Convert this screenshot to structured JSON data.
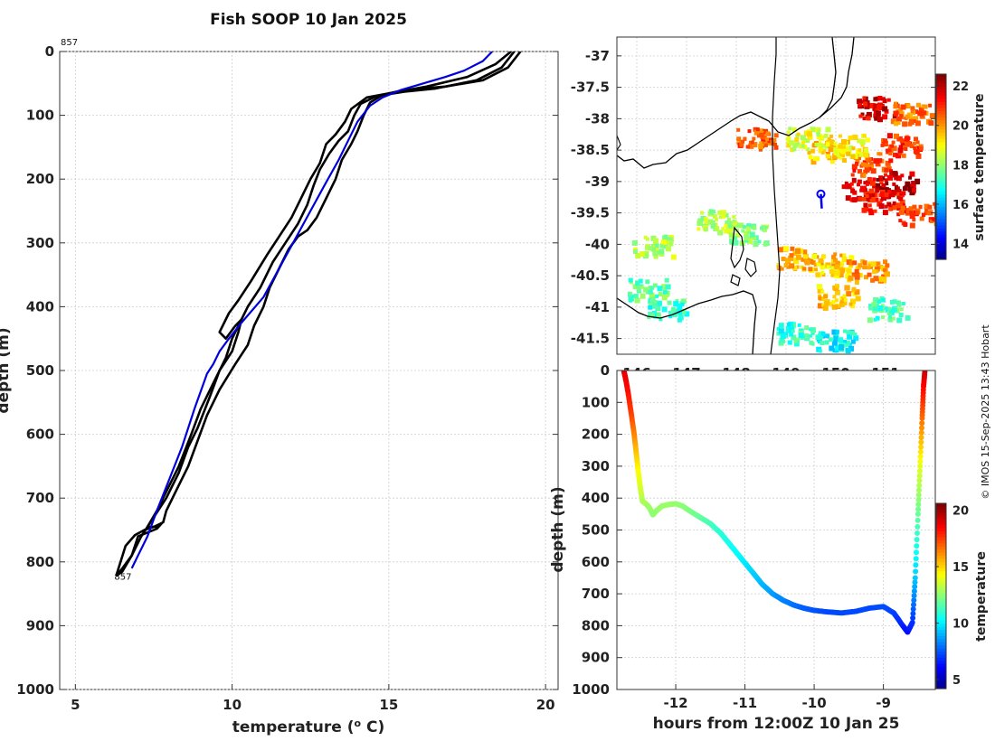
{
  "title": "Fish SOOP 10 Jan 2025",
  "credit": "© IMOS 15-Sep-2025 13:43 Hobart",
  "colors": {
    "black": "#000000",
    "blue": "#0000dd",
    "grid": "#c8c8c8"
  },
  "chart_data": [
    {
      "type": "line",
      "name": "profile",
      "xlabel": "temperature (",
      "xlabel_sup": "o",
      "xlabel_end": " C)",
      "ylabel": "depth (m)",
      "xlim": [
        4.5,
        20.4
      ],
      "ylim": [
        1000,
        0
      ],
      "xticks": [
        5,
        10,
        15,
        20
      ],
      "yticks": [
        0,
        100,
        200,
        300,
        400,
        500,
        600,
        700,
        800,
        900,
        1000
      ],
      "annotations": [
        {
          "text": "857",
          "x": 4.5,
          "y": -20
        },
        {
          "text": "857",
          "x": 6.3,
          "y": 822
        }
      ],
      "series": [
        {
          "name": "profile-1",
          "color": "#000000",
          "points": [
            [
              19.0,
              0
            ],
            [
              18.6,
              25
            ],
            [
              17.8,
              45
            ],
            [
              16.5,
              58
            ],
            [
              15.5,
              63
            ],
            [
              14.6,
              70
            ],
            [
              14.1,
              82
            ],
            [
              13.9,
              100
            ],
            [
              13.7,
              125
            ],
            [
              13.4,
              140
            ],
            [
              13.1,
              160
            ],
            [
              12.8,
              185
            ],
            [
              12.6,
              210
            ],
            [
              12.4,
              240
            ],
            [
              12.1,
              270
            ],
            [
              11.7,
              300
            ],
            [
              11.3,
              330
            ],
            [
              10.9,
              370
            ],
            [
              10.5,
              400
            ],
            [
              10.3,
              420
            ],
            [
              10.2,
              440
            ],
            [
              10.0,
              470
            ],
            [
              9.6,
              500
            ],
            [
              9.3,
              540
            ],
            [
              8.9,
              590
            ],
            [
              8.6,
              620
            ],
            [
              8.3,
              660
            ],
            [
              7.9,
              700
            ],
            [
              7.5,
              730
            ],
            [
              7.1,
              760
            ],
            [
              6.8,
              790
            ],
            [
              6.5,
              815
            ],
            [
              6.3,
              822
            ]
          ]
        },
        {
          "name": "profile-2",
          "color": "#000000",
          "points": [
            [
              19.2,
              0
            ],
            [
              18.8,
              25
            ],
            [
              18.0,
              45
            ],
            [
              16.8,
              55
            ],
            [
              15.5,
              60
            ],
            [
              14.8,
              68
            ],
            [
              14.4,
              80
            ],
            [
              14.2,
              100
            ],
            [
              14.0,
              125
            ],
            [
              13.8,
              145
            ],
            [
              13.5,
              170
            ],
            [
              13.3,
              200
            ],
            [
              13.0,
              230
            ],
            [
              12.7,
              260
            ],
            [
              12.4,
              280
            ],
            [
              12.1,
              290
            ],
            [
              11.8,
              310
            ],
            [
              11.5,
              340
            ],
            [
              11.2,
              370
            ],
            [
              11.0,
              400
            ],
            [
              10.7,
              430
            ],
            [
              10.5,
              460
            ],
            [
              10.1,
              490
            ],
            [
              9.6,
              530
            ],
            [
              9.2,
              570
            ],
            [
              8.9,
              610
            ],
            [
              8.6,
              650
            ],
            [
              8.2,
              690
            ],
            [
              7.9,
              720
            ],
            [
              7.8,
              738
            ],
            [
              7.5,
              745
            ],
            [
              7.2,
              750
            ],
            [
              6.9,
              758
            ],
            [
              6.6,
              775
            ],
            [
              6.3,
              822
            ]
          ]
        },
        {
          "name": "profile-3",
          "color": "#000000",
          "points": [
            [
              18.9,
              0
            ],
            [
              18.4,
              20
            ],
            [
              17.5,
              40
            ],
            [
              16.2,
              55
            ],
            [
              15.4,
              62
            ],
            [
              14.3,
              72
            ],
            [
              13.8,
              90
            ],
            [
              13.6,
              110
            ],
            [
              13.3,
              130
            ],
            [
              13.0,
              145
            ],
            [
              12.8,
              175
            ],
            [
              12.5,
              200
            ],
            [
              12.2,
              230
            ],
            [
              11.9,
              260
            ],
            [
              11.5,
              290
            ],
            [
              11.1,
              320
            ],
            [
              10.6,
              360
            ],
            [
              10.2,
              390
            ],
            [
              9.9,
              410
            ],
            [
              9.6,
              440
            ],
            [
              9.8,
              450
            ],
            [
              10.1,
              430
            ],
            [
              10.3,
              420
            ],
            [
              10.0,
              450
            ],
            [
              9.8,
              480
            ],
            [
              9.4,
              520
            ],
            [
              9.0,
              560
            ],
            [
              8.7,
              600
            ],
            [
              8.3,
              650
            ],
            [
              7.9,
              690
            ],
            [
              7.6,
              720
            ],
            [
              7.3,
              745
            ],
            [
              7.6,
              745
            ],
            [
              7.75,
              740
            ],
            [
              7.6,
              748
            ],
            [
              7.0,
              760
            ],
            [
              6.8,
              790
            ],
            [
              6.5,
              810
            ],
            [
              6.3,
              822
            ]
          ]
        },
        {
          "name": "xbt",
          "color": "#0000dd",
          "points": [
            [
              18.3,
              0
            ],
            [
              18.0,
              15
            ],
            [
              17.4,
              30
            ],
            [
              16.8,
              40
            ],
            [
              15.4,
              60
            ],
            [
              14.8,
              72
            ],
            [
              14.4,
              85
            ],
            [
              14.0,
              110
            ],
            [
              13.7,
              140
            ],
            [
              13.4,
              170
            ],
            [
              13.0,
              205
            ],
            [
              12.5,
              250
            ],
            [
              12.0,
              295
            ],
            [
              11.5,
              340
            ],
            [
              11.0,
              385
            ],
            [
              10.3,
              425
            ],
            [
              9.9,
              450
            ],
            [
              9.6,
              470
            ],
            [
              9.4,
              490
            ],
            [
              9.2,
              505
            ],
            [
              8.8,
              560
            ],
            [
              8.4,
              620
            ],
            [
              8.0,
              670
            ],
            [
              7.6,
              720
            ],
            [
              7.3,
              760
            ],
            [
              7.0,
              790
            ],
            [
              6.8,
              810
            ]
          ]
        }
      ]
    },
    {
      "type": "heatmap",
      "name": "sst-map",
      "xlim": [
        145.6,
        152.0
      ],
      "ylim": [
        -41.75,
        -36.7
      ],
      "xticks": [
        146,
        147,
        148,
        149,
        150,
        151
      ],
      "yticks": [
        -37,
        -37.5,
        -38,
        -38.5,
        -39,
        -39.5,
        -40,
        -40.5,
        -41,
        -41.5
      ],
      "colorbar": {
        "label": "surface temperature",
        "lim": [
          13.2,
          22.6
        ],
        "ticks": [
          14,
          16,
          18,
          20,
          22
        ]
      },
      "drop_marker": {
        "lon": 149.7,
        "lat": -39.2
      },
      "sst_patches": [
        {
          "lon": 150.8,
          "lat": -37.8,
          "value": 21.8
        },
        {
          "lon": 151.3,
          "lat": -38.4,
          "value": 21.0
        },
        {
          "lon": 150.7,
          "lat": -38.7,
          "value": 20.8
        },
        {
          "lon": 150.5,
          "lat": -39.1,
          "value": 21.5
        },
        {
          "lon": 151.2,
          "lat": -39.0,
          "value": 22.2
        },
        {
          "lon": 150.9,
          "lat": -39.3,
          "value": 21.4
        },
        {
          "lon": 151.6,
          "lat": -39.5,
          "value": 21.0
        },
        {
          "lon": 149.8,
          "lat": -38.5,
          "value": 19.6
        },
        {
          "lon": 150.2,
          "lat": -38.4,
          "value": 19.2
        },
        {
          "lon": 149.4,
          "lat": -38.3,
          "value": 18.8
        },
        {
          "lon": 149.2,
          "lat": -40.2,
          "value": 19.8
        },
        {
          "lon": 149.9,
          "lat": -40.3,
          "value": 19.5
        },
        {
          "lon": 148.2,
          "lat": -39.8,
          "value": 18.0
        },
        {
          "lon": 147.6,
          "lat": -39.6,
          "value": 18.3
        },
        {
          "lon": 146.3,
          "lat": -40.0,
          "value": 18.4
        },
        {
          "lon": 146.2,
          "lat": -40.7,
          "value": 17.6
        },
        {
          "lon": 146.6,
          "lat": -41.0,
          "value": 17.2
        },
        {
          "lon": 150.0,
          "lat": -40.8,
          "value": 19.6
        },
        {
          "lon": 150.6,
          "lat": -40.4,
          "value": 20.0
        },
        {
          "lon": 149.2,
          "lat": -41.4,
          "value": 17.2
        },
        {
          "lon": 150.0,
          "lat": -41.5,
          "value": 16.8
        },
        {
          "lon": 151.0,
          "lat": -41.0,
          "value": 17.4
        },
        {
          "lon": 148.4,
          "lat": -38.3,
          "value": 20.6
        },
        {
          "lon": 151.5,
          "lat": -37.9,
          "value": 20.4
        }
      ]
    },
    {
      "type": "scatter",
      "name": "depth-time",
      "xlabel": "hours from 12:00Z 10 Jan 25",
      "ylabel": "depth (m)",
      "xlim": [
        -12.85,
        -8.25
      ],
      "ylim": [
        1000,
        0
      ],
      "xticks": [
        -12,
        -11,
        -10,
        -9
      ],
      "yticks": [
        0,
        100,
        200,
        300,
        400,
        500,
        600,
        700,
        800,
        900,
        1000
      ],
      "colorbar": {
        "label": "temperature",
        "lim": [
          4.2,
          20.6
        ],
        "ticks": [
          5,
          10,
          15,
          20
        ]
      },
      "track": [
        [
          -12.75,
          0,
          19.0
        ],
        [
          -12.72,
          30,
          18.8
        ],
        [
          -12.68,
          80,
          18.2
        ],
        [
          -12.64,
          140,
          17.5
        ],
        [
          -12.6,
          200,
          16.5
        ],
        [
          -12.57,
          260,
          15.4
        ],
        [
          -12.54,
          320,
          14.4
        ],
        [
          -12.51,
          370,
          13.8
        ],
        [
          -12.48,
          410,
          13.2
        ],
        [
          -12.42,
          420,
          13.0
        ],
        [
          -12.38,
          430,
          12.9
        ],
        [
          -12.33,
          452,
          12.6
        ],
        [
          -12.28,
          440,
          12.7
        ],
        [
          -12.2,
          425,
          12.8
        ],
        [
          -12.1,
          420,
          12.8
        ],
        [
          -12.0,
          418,
          12.8
        ],
        [
          -11.9,
          425,
          12.6
        ],
        [
          -11.8,
          440,
          12.4
        ],
        [
          -11.65,
          460,
          12.0
        ],
        [
          -11.5,
          480,
          11.5
        ],
        [
          -11.35,
          510,
          11.0
        ],
        [
          -11.2,
          550,
          10.6
        ],
        [
          -11.05,
          590,
          10.2
        ],
        [
          -10.9,
          630,
          9.7
        ],
        [
          -10.75,
          670,
          9.2
        ],
        [
          -10.6,
          700,
          8.8
        ],
        [
          -10.45,
          720,
          8.4
        ],
        [
          -10.3,
          735,
          8.1
        ],
        [
          -10.15,
          745,
          7.8
        ],
        [
          -10.0,
          752,
          7.6
        ],
        [
          -9.8,
          757,
          7.4
        ],
        [
          -9.6,
          760,
          7.4
        ],
        [
          -9.4,
          755,
          7.4
        ],
        [
          -9.2,
          745,
          7.4
        ],
        [
          -9.0,
          740,
          7.5
        ],
        [
          -8.85,
          760,
          7.3
        ],
        [
          -8.72,
          800,
          6.8
        ],
        [
          -8.65,
          820,
          6.4
        ],
        [
          -8.58,
          790,
          7.0
        ],
        [
          -8.54,
          650,
          9.5
        ],
        [
          -8.5,
          450,
          12.0
        ],
        [
          -8.47,
          300,
          14.0
        ],
        [
          -8.44,
          150,
          16.8
        ],
        [
          -8.42,
          50,
          18.5
        ],
        [
          -8.4,
          0,
          19.3
        ]
      ]
    }
  ]
}
